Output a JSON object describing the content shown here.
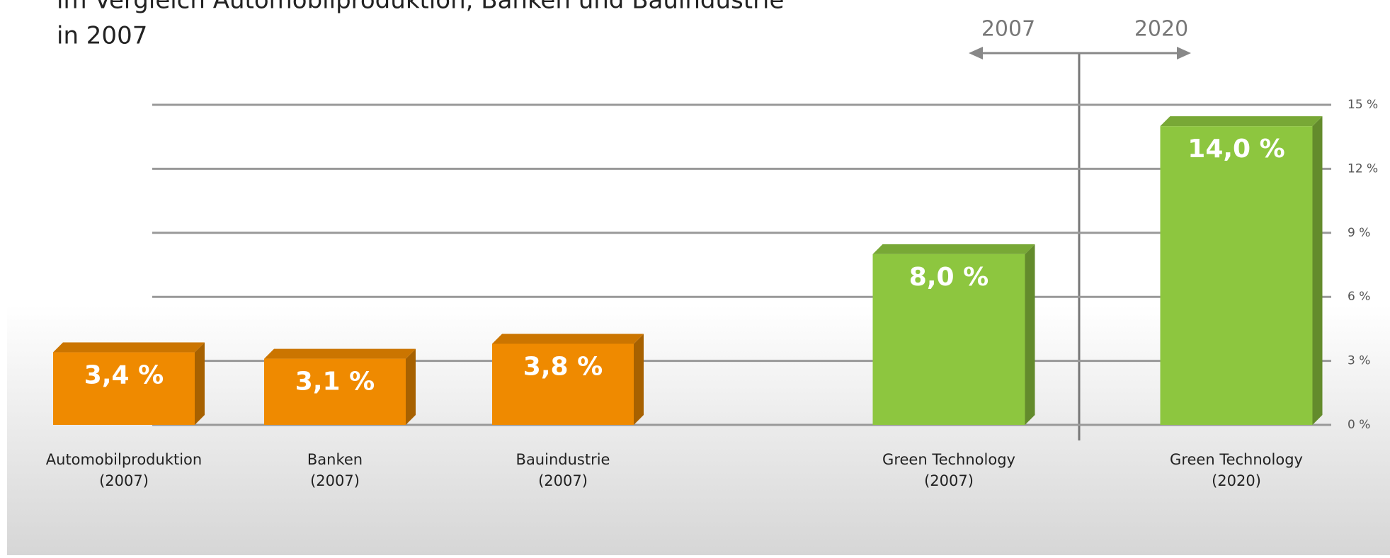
{
  "chart_data": {
    "type": "bar3d",
    "title": [
      "im Vergleich Automobilproduktion, Banken und Bauindustrie",
      "in 2007"
    ],
    "categories": [
      "Automobilproduktion (2007)",
      "Banken (2007)",
      "Bauindustrie (2007)",
      "Green Technology (2007)",
      "Green Technology (2020)"
    ],
    "values": [
      3.4,
      3.1,
      3.8,
      8.0,
      14.0
    ],
    "value_labels": [
      "3,4 %",
      "3,1 %",
      "3,8 %",
      "8,0 %",
      "14,0 %"
    ],
    "colors": [
      "#ef8a00",
      "#ef8a00",
      "#ef8a00",
      "#8dc63f",
      "#8dc63f"
    ],
    "ylim": [
      0,
      15
    ],
    "yticks": [
      {
        "value": 0,
        "label": "0 %"
      },
      {
        "value": 3,
        "label": "3 %"
      },
      {
        "value": 6,
        "label": "6 %"
      },
      {
        "value": 9,
        "label": "9 %"
      },
      {
        "value": 12,
        "label": "12 %"
      },
      {
        "value": 15,
        "label": "15 %"
      }
    ],
    "grid": true,
    "annotations": [
      "2007",
      "2020"
    ]
  }
}
